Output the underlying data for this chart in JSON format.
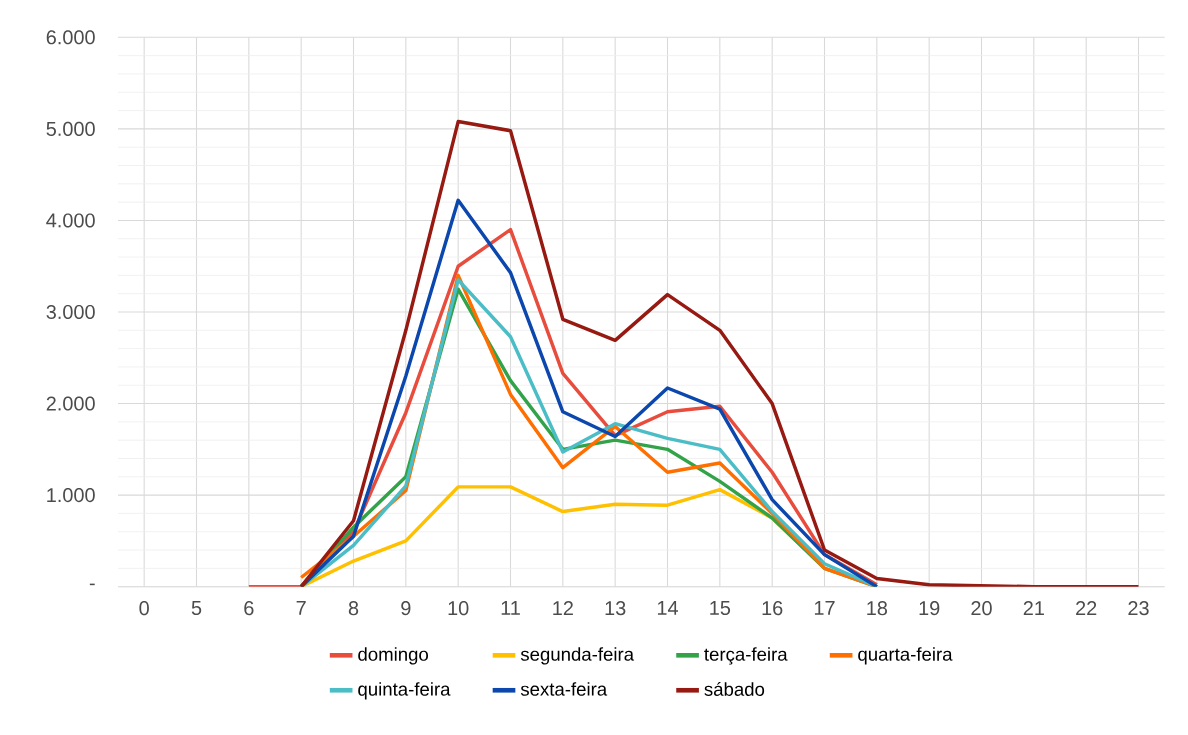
{
  "chart_data": {
    "type": "line",
    "categories": [
      "0",
      "5",
      "6",
      "7",
      "8",
      "9",
      "10",
      "11",
      "12",
      "13",
      "14",
      "15",
      "16",
      "17",
      "18",
      "19",
      "20",
      "21",
      "22",
      "23"
    ],
    "series": [
      {
        "name": "domingo",
        "color": "#e84c3d",
        "values": [
          null,
          null,
          0,
          0,
          600,
          1900,
          3500,
          3900,
          2330,
          1650,
          1910,
          1970,
          1250,
          350,
          20,
          null,
          null,
          null,
          null,
          null
        ]
      },
      {
        "name": "segunda-feira",
        "color": "#ffc000",
        "values": [
          null,
          null,
          null,
          0,
          280,
          500,
          1090,
          1090,
          820,
          900,
          890,
          1060,
          750,
          200,
          null,
          null,
          null,
          null,
          null,
          null
        ]
      },
      {
        "name": "terça-feira",
        "color": "#33a34a",
        "values": [
          null,
          null,
          null,
          0,
          650,
          1200,
          3250,
          2250,
          1500,
          1600,
          1500,
          1150,
          750,
          200,
          0,
          null,
          null,
          null,
          null,
          null
        ]
      },
      {
        "name": "quarta-feira",
        "color": "#ff6f00",
        "values": [
          null,
          null,
          null,
          100,
          550,
          1050,
          3400,
          2100,
          1300,
          1750,
          1250,
          1350,
          800,
          200,
          0,
          null,
          null,
          null,
          null,
          null
        ]
      },
      {
        "name": "quinta-feira",
        "color": "#4bbdc6",
        "values": [
          null,
          null,
          null,
          0,
          450,
          1100,
          3350,
          2730,
          1470,
          1780,
          1620,
          1500,
          820,
          250,
          0,
          null,
          null,
          null,
          null,
          null
        ]
      },
      {
        "name": "sexta-feira",
        "color": "#0b47ad",
        "values": [
          null,
          null,
          null,
          0,
          550,
          2300,
          4220,
          3430,
          1910,
          1640,
          2170,
          1940,
          950,
          350,
          0,
          null,
          null,
          null,
          null,
          null
        ]
      },
      {
        "name": "sábado",
        "color": "#961a12",
        "values": [
          null,
          null,
          null,
          0,
          720,
          2800,
          5080,
          4980,
          2920,
          2690,
          3190,
          2800,
          2000,
          400,
          90,
          20,
          10,
          0,
          0,
          0
        ]
      }
    ],
    "ylim": [
      0,
      6000
    ],
    "yticks": [
      {
        "value": 0,
        "label": "-"
      },
      {
        "value": 1000,
        "label": "1.000"
      },
      {
        "value": 2000,
        "label": "2.000"
      },
      {
        "value": 3000,
        "label": "3.000"
      },
      {
        "value": 4000,
        "label": "4.000"
      },
      {
        "value": 5000,
        "label": "5.000"
      },
      {
        "value": 6000,
        "label": "6.000"
      }
    ],
    "grid": true,
    "legend": "bottom",
    "marker": "none",
    "line_style": "solid"
  }
}
